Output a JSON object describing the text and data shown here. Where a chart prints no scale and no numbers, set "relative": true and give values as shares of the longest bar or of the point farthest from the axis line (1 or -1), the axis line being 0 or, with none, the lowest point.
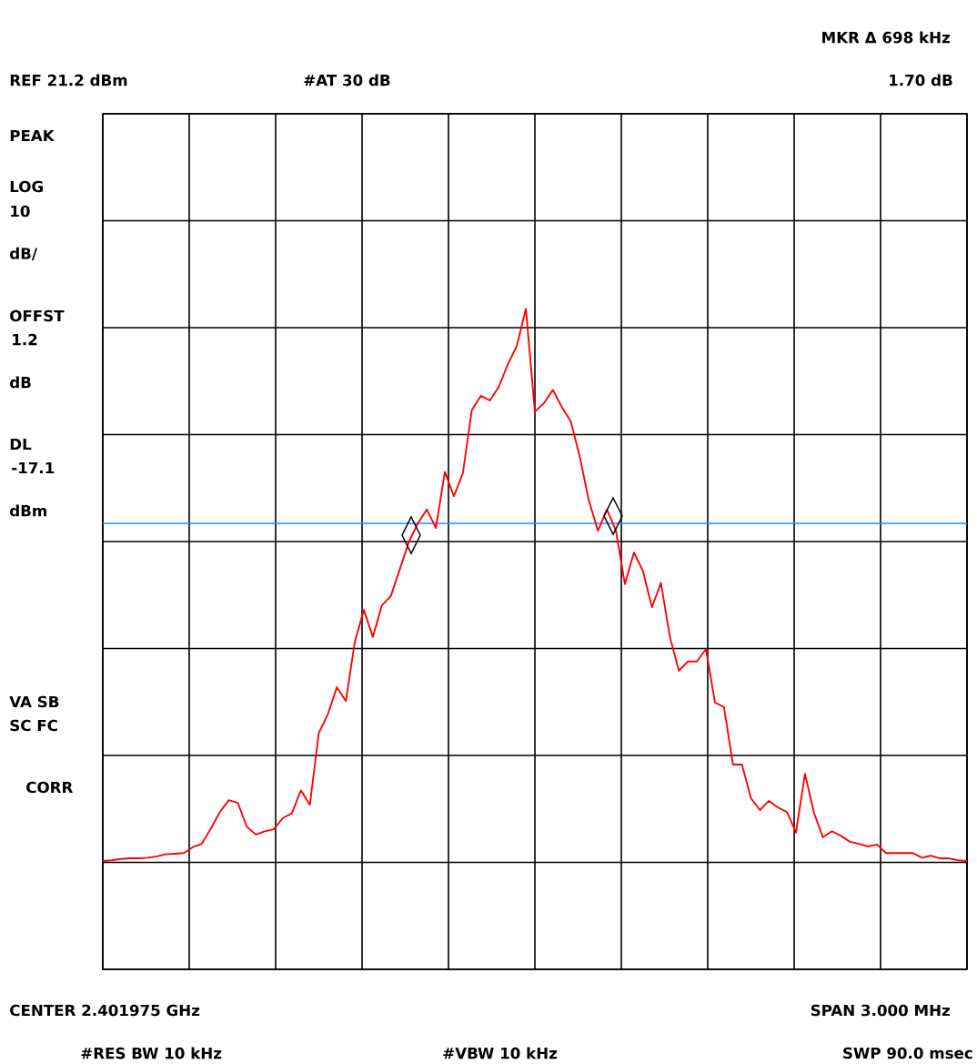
{
  "chart_data": {
    "type": "line",
    "relative": true,
    "grid": true,
    "categories": [
      null,
      null,
      null,
      null,
      null,
      null,
      null,
      null,
      null,
      null,
      null,
      null,
      null,
      null,
      null,
      null,
      null,
      null,
      null,
      null,
      null,
      null,
      null,
      null,
      null,
      null,
      null,
      null,
      null,
      null,
      null,
      null,
      null,
      null,
      null,
      null,
      null,
      null,
      null,
      null,
      null,
      null,
      null,
      null,
      null,
      null,
      null,
      null,
      null,
      null,
      null,
      null,
      null,
      null,
      null,
      null,
      null,
      null,
      null,
      null,
      null,
      null,
      null,
      null,
      null,
      null,
      null,
      null,
      null,
      null,
      null,
      null,
      null,
      null,
      null,
      null,
      null,
      null,
      null,
      null,
      null,
      null,
      null,
      null,
      null,
      null,
      null,
      null,
      null,
      null,
      null,
      null,
      null,
      null,
      null,
      null,
      null
    ],
    "series": [
      {
        "color": "#ff0000",
        "values": [
          0.164,
          0.165,
          0.167,
          0.168,
          0.168,
          0.169,
          0.171,
          0.174,
          0.175,
          0.176,
          0.185,
          0.19,
          0.213,
          0.238,
          0.256,
          0.252,
          0.216,
          0.204,
          0.209,
          0.212,
          0.229,
          0.236,
          0.271,
          0.249,
          0.358,
          0.386,
          0.427,
          0.406,
          0.496,
          0.544,
          0.503,
          0.551,
          0.565,
          0.606,
          0.647,
          0.675,
          0.696,
          0.668,
          0.753,
          0.716,
          0.751,
          0.847,
          0.868,
          0.861,
          0.882,
          0.916,
          0.944,
          1,
          0.844,
          0.857,
          0.877,
          0.851,
          0.829,
          0.775,
          0.709,
          0.664,
          0.696,
          0.664,
          0.583,
          0.631,
          0.603,
          0.548,
          0.585,
          0.503,
          0.452,
          0.466,
          0.466,
          0.485,
          0.404,
          0.397,
          0.31,
          0.31,
          0.259,
          0.241,
          0.255,
          0.245,
          0.238,
          0.207,
          0.296,
          0.237,
          0.2,
          0.209,
          0.202,
          0.193,
          0.19,
          0.186,
          0.189,
          0.176,
          0.176,
          0.176,
          0.176,
          0.169,
          0.172,
          0.168,
          0.168,
          0.165,
          0.164
        ]
      }
    ],
    "ref_lines": [
      {
        "axis": "y",
        "value": 0.675,
        "color": "#1e8fff"
      }
    ],
    "annotations": [
      "MKR Δ 698 kHz",
      "REF 21.2 dBm",
      "#AT 30 dB",
      "1.70 dB",
      "PEAK",
      "LOG",
      "10",
      "dB/",
      "OFFST",
      "1.2",
      "dB",
      "DL",
      "-17.1",
      "dBm",
      "VA SB",
      "SC FC",
      "CORR",
      "CENTER 2.401975 GHz",
      "SPAN 3.000 MHz",
      "#RES BW 10 kHz",
      "#VBW 10 kHz",
      "SWP 90.0 msec"
    ]
  }
}
